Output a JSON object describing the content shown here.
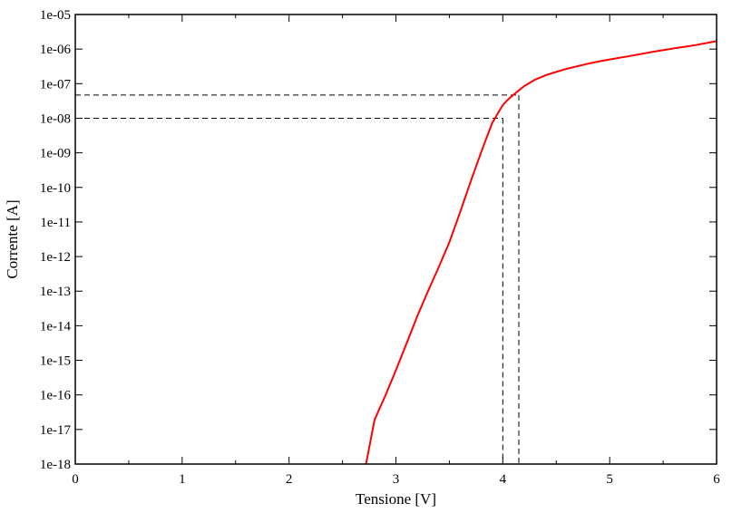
{
  "chart_data": {
    "type": "line",
    "xlabel": "Tensione [V]",
    "ylabel": "Corrente [A]",
    "xlim": [
      0,
      6
    ],
    "ylim": [
      1e-18,
      1e-05
    ],
    "yscale": "log",
    "grid": false,
    "x_ticks": [
      0,
      1,
      2,
      3,
      4,
      5,
      6
    ],
    "x_tick_labels": [
      "0",
      "1",
      "2",
      "3",
      "4",
      "5",
      "6"
    ],
    "y_ticks": [
      1e-18,
      1e-17,
      1e-16,
      1e-15,
      1e-14,
      1e-13,
      1e-12,
      1e-11,
      1e-10,
      1e-09,
      1e-08,
      1e-07,
      1e-06,
      1e-05
    ],
    "y_tick_labels": [
      "1e-18",
      "1e-17",
      "1e-16",
      "1e-15",
      "1e-14",
      "1e-13",
      "1e-12",
      "1e-11",
      "1e-10",
      "1e-09",
      "1e-08",
      "1e-07",
      "1e-06",
      "1e-05"
    ],
    "series": [
      {
        "color": "#ff0000",
        "x": [
          2.72,
          2.8,
          2.9,
          3.0,
          3.1,
          3.2,
          3.3,
          3.4,
          3.5,
          3.6,
          3.7,
          3.8,
          3.9,
          3.96,
          4.0,
          4.05,
          4.1,
          4.15,
          4.2,
          4.3,
          4.4,
          4.5,
          4.6,
          4.7,
          4.8,
          4.9,
          5.0,
          5.2,
          5.4,
          5.6,
          5.8,
          6.0
        ],
        "y": [
          1e-18,
          1.9e-17,
          9.4e-17,
          5.2e-16,
          3.1e-15,
          1.9e-14,
          1e-13,
          4.9e-13,
          2.6e-12,
          1.9e-11,
          1.5e-10,
          1.1e-09,
          7.2e-09,
          1.5e-08,
          2.4e-08,
          3.5e-08,
          4.8e-08,
          6.4e-08,
          8.5e-08,
          1.3e-07,
          1.75e-07,
          2.2e-07,
          2.7e-07,
          3.2e-07,
          3.8e-07,
          4.4e-07,
          5e-07,
          6.4e-07,
          8.3e-07,
          1.05e-06,
          1.3e-06,
          1.7e-06
        ]
      }
    ],
    "reference_lines": [
      {
        "x": 4.0,
        "y": 1e-08,
        "style": "dashed"
      },
      {
        "x": 4.15,
        "y": 4.7e-08,
        "style": "dashed"
      }
    ]
  }
}
